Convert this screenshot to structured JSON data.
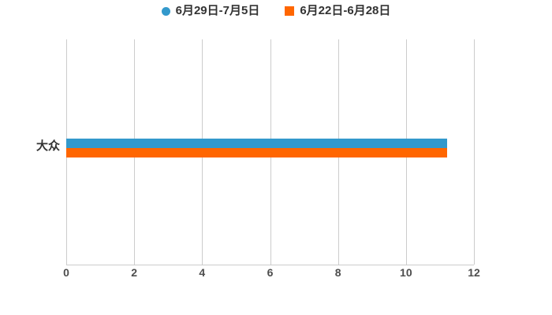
{
  "legend": {
    "items": [
      {
        "label": "6月29日-7月5日",
        "color": "#3399CC",
        "marker": "circle"
      },
      {
        "label": "6月22日-6月28日",
        "color": "#FF6600",
        "marker": "square"
      }
    ]
  },
  "chart_data": {
    "type": "bar",
    "orientation": "horizontal",
    "title": "",
    "xlabel": "",
    "ylabel": "",
    "categories": [
      "大众"
    ],
    "series": [
      {
        "name": "6月29日-7月5日",
        "color": "#3399CC",
        "values": [
          11.2
        ]
      },
      {
        "name": "6月22日-6月28日",
        "color": "#FF6600",
        "values": [
          11.2
        ]
      }
    ],
    "xlim": [
      0,
      12
    ],
    "x_ticks": [
      0,
      2,
      4,
      6,
      8,
      10,
      12
    ],
    "grid": true,
    "legend_position": "top",
    "colors": {
      "grid_line": "#cccccc",
      "axis_line": "#cccccc",
      "tick_text": "#4d4d4d",
      "label_text": "#333333",
      "background": "#ffffff"
    }
  }
}
